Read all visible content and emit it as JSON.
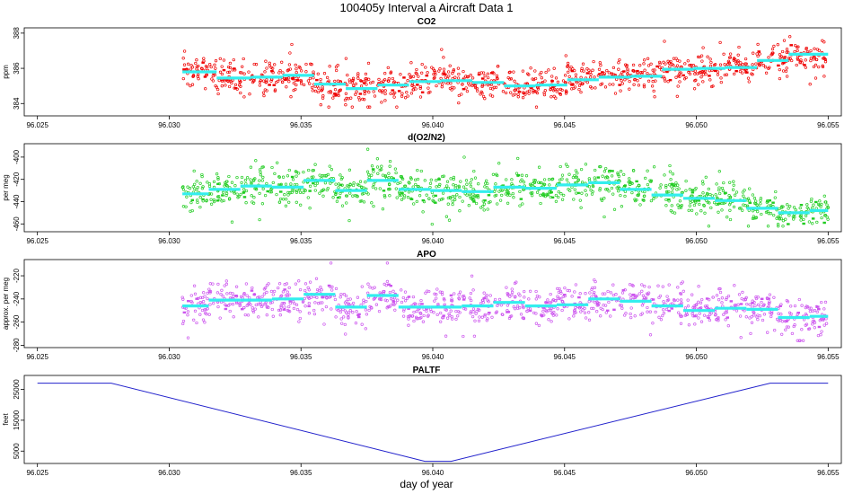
{
  "title": "100405y   Interval a Aircraft Data 1",
  "chart_data": {
    "type": "scatter",
    "xlabel": "day of year",
    "xlim": [
      96.0245,
      96.0555
    ],
    "xticks": [
      96.025,
      96.03,
      96.035,
      96.04,
      96.045,
      96.05,
      96.055
    ],
    "xtick_labels": [
      "96.025",
      "96.030",
      "96.035",
      "96.040",
      "96.045",
      "96.050",
      "96.055"
    ],
    "panels": [
      {
        "title": "CO2",
        "ylabel": "ppm",
        "ylim": [
          383.3,
          388.3
        ],
        "yticks": [
          384,
          386,
          388
        ],
        "ytick_labels": [
          "384",
          "386",
          "388"
        ],
        "scatter_color": "#ee0000",
        "scatter_x_range": [
          96.0305,
          96.055
        ],
        "scatter_y_range": [
          383.8,
          387.8
        ],
        "line_color": "#33eeee",
        "segments": [
          {
            "x0": 96.0305,
            "x1": 96.0318,
            "y": 385.8
          },
          {
            "x0": 96.0318,
            "x1": 96.0331,
            "y": 385.45
          },
          {
            "x0": 96.0331,
            "x1": 96.0343,
            "y": 385.5
          },
          {
            "x0": 96.0343,
            "x1": 96.0355,
            "y": 385.6
          },
          {
            "x0": 96.0355,
            "x1": 96.0367,
            "y": 385.1
          },
          {
            "x0": 96.0367,
            "x1": 96.0379,
            "y": 384.85
          },
          {
            "x0": 96.0379,
            "x1": 96.0391,
            "y": 385.05
          },
          {
            "x0": 96.0391,
            "x1": 96.0403,
            "y": 385.25
          },
          {
            "x0": 96.0403,
            "x1": 96.0415,
            "y": 385.3
          },
          {
            "x0": 96.0415,
            "x1": 96.0427,
            "y": 385.2
          },
          {
            "x0": 96.0427,
            "x1": 96.0439,
            "y": 385.0
          },
          {
            "x0": 96.0439,
            "x1": 96.0451,
            "y": 385.05
          },
          {
            "x0": 96.0451,
            "x1": 96.0463,
            "y": 385.35
          },
          {
            "x0": 96.0463,
            "x1": 96.0475,
            "y": 385.5
          },
          {
            "x0": 96.0475,
            "x1": 96.0487,
            "y": 385.55
          },
          {
            "x0": 96.0487,
            "x1": 96.0499,
            "y": 385.95
          },
          {
            "x0": 96.0499,
            "x1": 96.0511,
            "y": 386.0
          },
          {
            "x0": 96.0511,
            "x1": 96.0523,
            "y": 386.05
          },
          {
            "x0": 96.0523,
            "x1": 96.0535,
            "y": 386.45
          },
          {
            "x0": 96.0535,
            "x1": 96.055,
            "y": 386.8
          }
        ]
      },
      {
        "title": "d(O2/N2)",
        "ylabel": "per meg",
        "ylim": [
          -467,
          -388
        ],
        "yticks": [
          -460,
          -440,
          -420,
          -400
        ],
        "ytick_labels": [
          "-460",
          "-440",
          "-420",
          "-400"
        ],
        "scatter_color": "#22cc22",
        "scatter_x_range": [
          96.0305,
          96.055
        ],
        "scatter_y_range": [
          -462,
          -393
        ],
        "line_color": "#33eeee",
        "segments": [
          {
            "x0": 96.0305,
            "x1": 96.0315,
            "y": -433
          },
          {
            "x0": 96.0315,
            "x1": 96.0327,
            "y": -429
          },
          {
            "x0": 96.0327,
            "x1": 96.0339,
            "y": -426
          },
          {
            "x0": 96.0339,
            "x1": 96.0351,
            "y": -427
          },
          {
            "x0": 96.0351,
            "x1": 96.0363,
            "y": -421
          },
          {
            "x0": 96.0363,
            "x1": 96.0375,
            "y": -430
          },
          {
            "x0": 96.0375,
            "x1": 96.0387,
            "y": -421
          },
          {
            "x0": 96.0387,
            "x1": 96.0399,
            "y": -429
          },
          {
            "x0": 96.0399,
            "x1": 96.0411,
            "y": -430
          },
          {
            "x0": 96.0411,
            "x1": 96.0423,
            "y": -431
          },
          {
            "x0": 96.0423,
            "x1": 96.0435,
            "y": -427
          },
          {
            "x0": 96.0435,
            "x1": 96.0447,
            "y": -428
          },
          {
            "x0": 96.0447,
            "x1": 96.0459,
            "y": -425
          },
          {
            "x0": 96.0459,
            "x1": 96.0471,
            "y": -423
          },
          {
            "x0": 96.0471,
            "x1": 96.0483,
            "y": -429
          },
          {
            "x0": 96.0483,
            "x1": 96.0495,
            "y": -434
          },
          {
            "x0": 96.0495,
            "x1": 96.0507,
            "y": -437
          },
          {
            "x0": 96.0507,
            "x1": 96.0519,
            "y": -439
          },
          {
            "x0": 96.0519,
            "x1": 96.0531,
            "y": -446
          },
          {
            "x0": 96.0531,
            "x1": 96.0543,
            "y": -450
          },
          {
            "x0": 96.0543,
            "x1": 96.055,
            "y": -448
          }
        ]
      },
      {
        "title": "APO",
        "ylabel": "approx. per meg",
        "ylim": [
          -282,
          -206
        ],
        "yticks": [
          -280,
          -260,
          -240,
          -220
        ],
        "ytick_labels": [
          "-280",
          "-260",
          "-240",
          "-220"
        ],
        "scatter_color": "#cc55ee",
        "scatter_x_range": [
          96.0305,
          96.055
        ],
        "scatter_y_range": [
          -276,
          -209
        ],
        "line_color": "#33eeee",
        "segments": [
          {
            "x0": 96.0305,
            "x1": 96.0315,
            "y": -246
          },
          {
            "x0": 96.0315,
            "x1": 96.0327,
            "y": -241
          },
          {
            "x0": 96.0327,
            "x1": 96.0339,
            "y": -241
          },
          {
            "x0": 96.0339,
            "x1": 96.0351,
            "y": -240
          },
          {
            "x0": 96.0351,
            "x1": 96.0363,
            "y": -236
          },
          {
            "x0": 96.0363,
            "x1": 96.0375,
            "y": -247
          },
          {
            "x0": 96.0375,
            "x1": 96.0387,
            "y": -237
          },
          {
            "x0": 96.0387,
            "x1": 96.0399,
            "y": -247
          },
          {
            "x0": 96.0399,
            "x1": 96.0411,
            "y": -247
          },
          {
            "x0": 96.0411,
            "x1": 96.0423,
            "y": -246
          },
          {
            "x0": 96.0423,
            "x1": 96.0435,
            "y": -243
          },
          {
            "x0": 96.0435,
            "x1": 96.0447,
            "y": -246
          },
          {
            "x0": 96.0447,
            "x1": 96.0459,
            "y": -245
          },
          {
            "x0": 96.0459,
            "x1": 96.0471,
            "y": -240
          },
          {
            "x0": 96.0471,
            "x1": 96.0483,
            "y": -242
          },
          {
            "x0": 96.0483,
            "x1": 96.0495,
            "y": -246
          },
          {
            "x0": 96.0495,
            "x1": 96.0507,
            "y": -250
          },
          {
            "x0": 96.0507,
            "x1": 96.0519,
            "y": -248
          },
          {
            "x0": 96.0519,
            "x1": 96.0531,
            "y": -249
          },
          {
            "x0": 96.0531,
            "x1": 96.0543,
            "y": -256
          },
          {
            "x0": 96.0543,
            "x1": 96.055,
            "y": -255
          }
        ]
      },
      {
        "title": "PALTF",
        "ylabel": "feet",
        "ylim": [
          1000,
          29500
        ],
        "yticks": [
          5000,
          15000,
          25000
        ],
        "ytick_labels": [
          "5000",
          "15000",
          "25000"
        ],
        "line_color": "#2222cc",
        "line": {
          "x": [
            96.025,
            96.0278,
            96.0397,
            96.0407,
            96.0528,
            96.055
          ],
          "y": [
            27000,
            27000,
            1700,
            1700,
            27000,
            27000
          ]
        }
      }
    ]
  }
}
